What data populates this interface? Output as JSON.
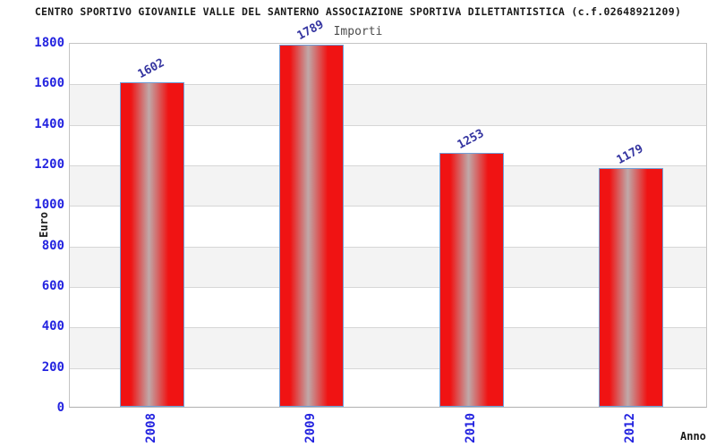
{
  "page": {
    "title": "CENTRO SPORTIVO GIOVANILE VALLE DEL SANTERNO ASSOCIAZIONE SPORTIVA DILETTANTISTICA (c.f.02648921209)"
  },
  "colors": {
    "title_black": "#1a1a1a",
    "subtitle_gray": "#4d4d4d",
    "tick_blue": "#2424e0",
    "value_blue": "#3434a0",
    "bar_red": "#f01313",
    "bar_center": "#bfa9a9",
    "bar_border": "#6f9fd8",
    "band_gray": "#f3f3f3",
    "gridline": "#d6d6d6",
    "axis_border": "#c4c4c4",
    "axis_border_bottom": "#b0b0b0"
  },
  "chart_data": {
    "type": "bar",
    "title": "Importi",
    "xlabel": "Anno",
    "ylabel": "Euro",
    "categories": [
      "2008",
      "2009",
      "2010",
      "2012"
    ],
    "values": [
      1602,
      1789,
      1253,
      1179
    ],
    "ylim": [
      0,
      1800
    ],
    "ytick_step": 200,
    "yticks": [
      0,
      200,
      400,
      600,
      800,
      1000,
      1200,
      1400,
      1600,
      1800
    ],
    "grid": "horizontal lines with alternating gray bands per 200-unit interval",
    "legend": "none",
    "bar_value_labels_rotation_deg": -28,
    "x_tick_labels_rotation_deg": -90
  }
}
